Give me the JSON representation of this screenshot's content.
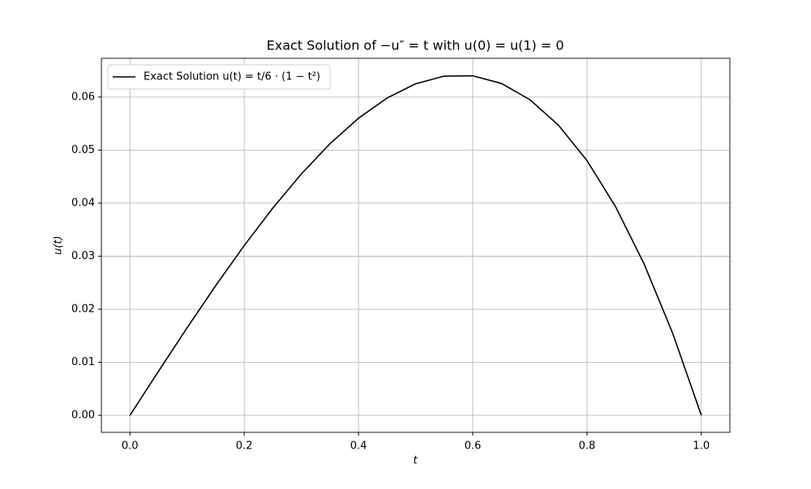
{
  "chart_data": {
    "type": "line",
    "title": "Exact Solution of −u″ = t with u(0) = u(1) = 0",
    "x_label": "t",
    "y_label": "u(t)",
    "x": [
      0,
      0.05,
      0.1,
      0.15,
      0.2,
      0.25,
      0.3,
      0.35,
      0.4,
      0.45,
      0.5,
      0.55,
      0.6,
      0.65,
      0.7,
      0.75,
      0.8,
      0.85,
      0.9,
      0.95,
      1.0
    ],
    "series": [
      {
        "name": "Exact Solution u(t) = t/6 · (1 − t²)",
        "color": "#000000",
        "values": [
          0,
          0.008313,
          0.0165,
          0.024438,
          0.032,
          0.039063,
          0.0455,
          0.051188,
          0.056,
          0.059813,
          0.0625,
          0.063938,
          0.064,
          0.062563,
          0.0595,
          0.054688,
          0.048,
          0.039313,
          0.0285,
          0.015438,
          0
        ]
      }
    ],
    "xlim": [
      -0.05,
      1.05
    ],
    "ylim": [
      -0.0032,
      0.0673
    ],
    "xticks": [
      {
        "value": 0,
        "label": "0.0"
      },
      0.2,
      0.4,
      0.6,
      0.8,
      {
        "value": 1,
        "label": "1.0"
      }
    ],
    "yticks": [
      {
        "value": 0,
        "label": "0.00"
      },
      0.01,
      0.02,
      0.03,
      0.04,
      0.05,
      0.06
    ],
    "grid": true,
    "legend": "upper-left"
  }
}
